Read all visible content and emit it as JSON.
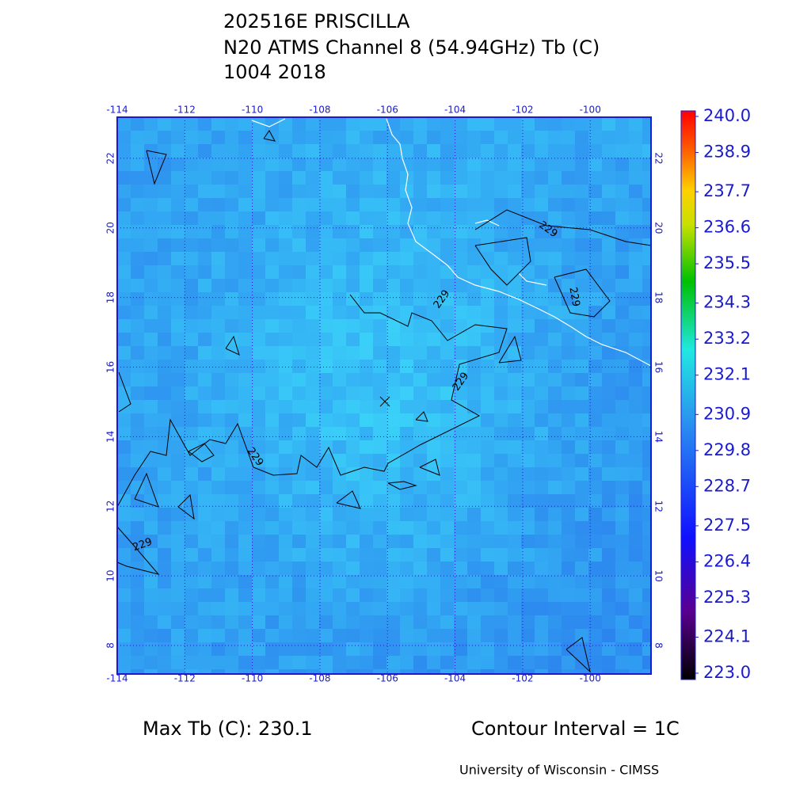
{
  "header": {
    "lines": [
      "202516E PRISCILLA",
      "N20 ATMS Channel 8 (54.94GHz) Tb (C)",
      "1004 2018"
    ]
  },
  "map": {
    "lonlim": [
      -114,
      -98.2
    ],
    "latlim": [
      7.18,
      23.18
    ],
    "lon_ticks": [
      -114,
      -112,
      -110,
      -108,
      -106,
      -104,
      -102,
      -100
    ],
    "lat_ticks": [
      8,
      10,
      12,
      14,
      16,
      18,
      20,
      22
    ],
    "contour_labels": [
      "229",
      "229",
      "229",
      "229",
      "229",
      "229"
    ]
  },
  "colorbar": {
    "lim": [
      223,
      240
    ],
    "ticks": [
      {
        "value": 240.0,
        "label": "240.0"
      },
      {
        "value": 238.9,
        "label": "238.9"
      },
      {
        "value": 237.7,
        "label": "237.7"
      },
      {
        "value": 236.6,
        "label": "236.6"
      },
      {
        "value": 235.5,
        "label": "235.5"
      },
      {
        "value": 234.3,
        "label": "234.3"
      },
      {
        "value": 233.2,
        "label": "233.2"
      },
      {
        "value": 232.1,
        "label": "232.1"
      },
      {
        "value": 230.9,
        "label": "230.9"
      },
      {
        "value": 229.8,
        "label": "229.8"
      },
      {
        "value": 228.7,
        "label": "228.7"
      },
      {
        "value": 227.5,
        "label": "227.5"
      },
      {
        "value": 226.4,
        "label": "226.4"
      },
      {
        "value": 225.3,
        "label": "225.3"
      },
      {
        "value": 224.1,
        "label": "224.1"
      },
      {
        "value": 223.0,
        "label": "223.0"
      }
    ]
  },
  "footer": {
    "max_tb": "Max Tb (C): 230.1",
    "contour_interval": "Contour Interval = 1C",
    "credit": "University of Wisconsin - CIMSS"
  }
}
